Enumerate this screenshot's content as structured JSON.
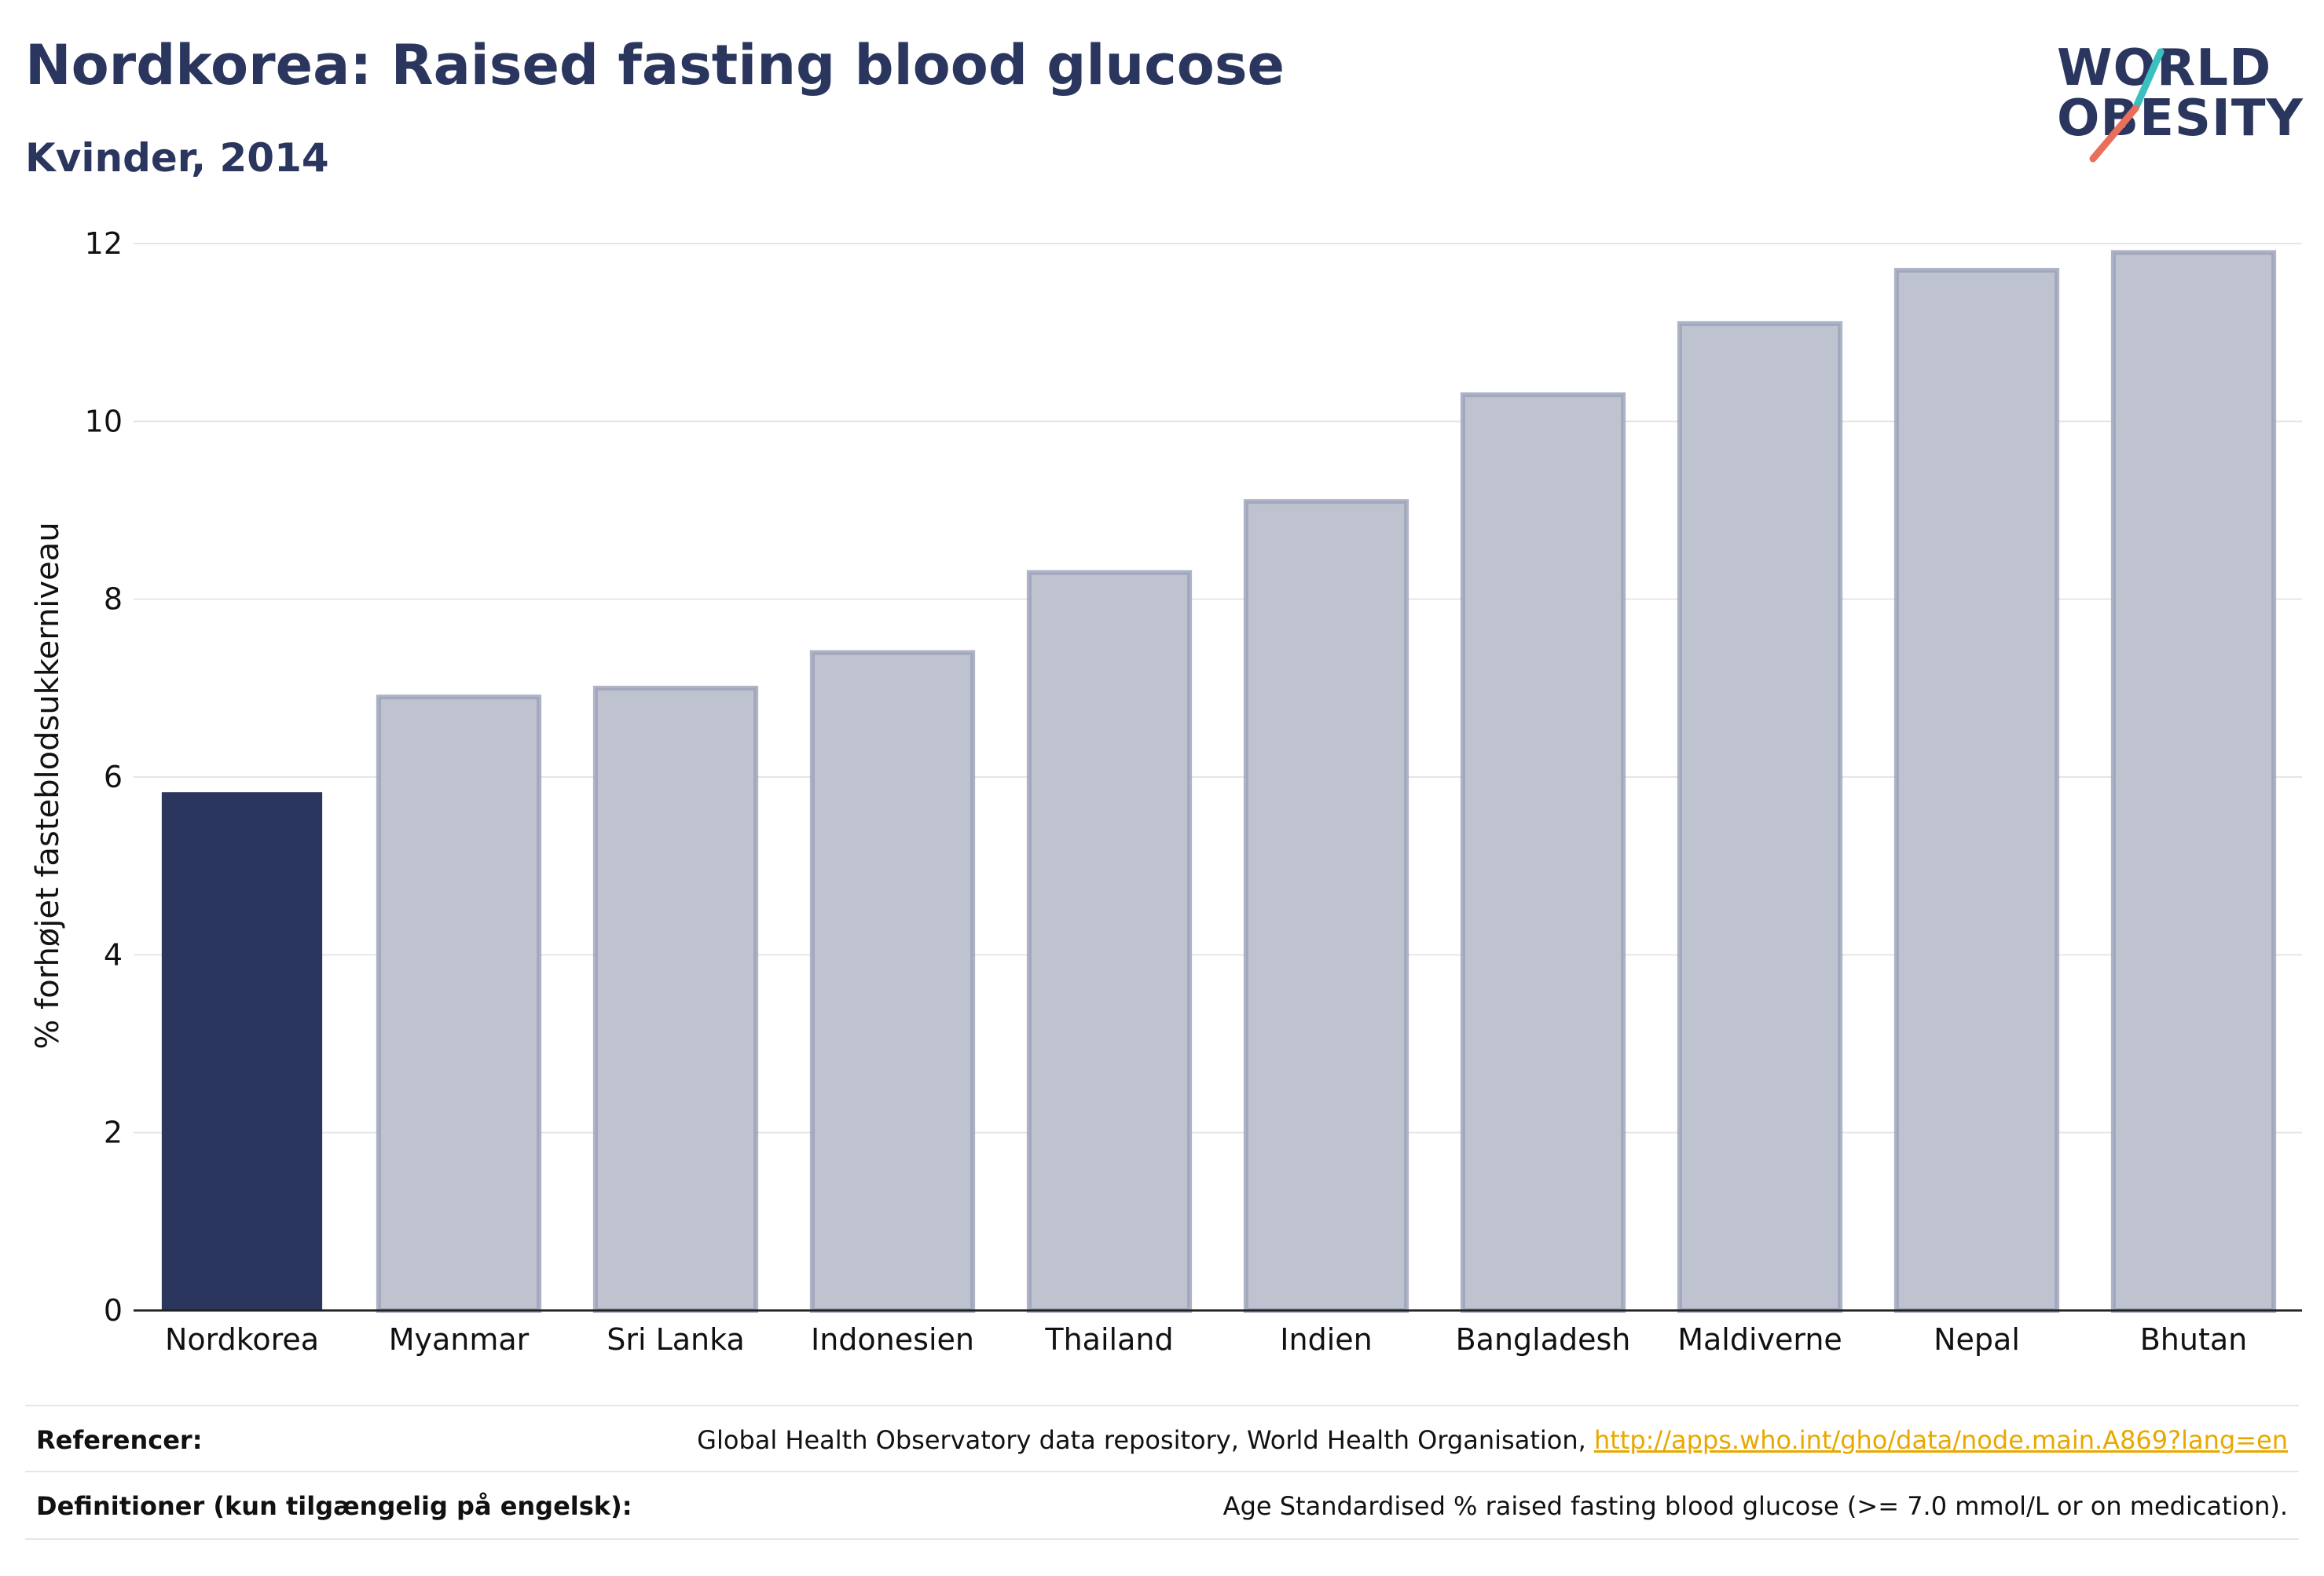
{
  "header": {
    "title": "Nordkorea: Raised fasting blood glucose",
    "subtitle": "Kvinder, 2014"
  },
  "logo": {
    "line1": "WORLD",
    "line2": "OBESITY",
    "colors": {
      "text": "#2b365e",
      "slash_top": "#3cbfbf",
      "slash_bottom": "#e8705a"
    }
  },
  "chart_data": {
    "type": "bar",
    "title": "Nordkorea: Raised fasting blood glucose",
    "subtitle": "Kvinder, 2014",
    "xlabel": "",
    "ylabel": "% forhøjet fasteblodsukkerniveau",
    "categories": [
      "Nordkorea",
      "Myanmar",
      "Sri Lanka",
      "Indonesien",
      "Thailand",
      "Indien",
      "Bangladesh",
      "Maldiverne",
      "Nepal",
      "Bhutan"
    ],
    "values": [
      5.83,
      6.9,
      7.0,
      7.4,
      8.3,
      9.1,
      10.3,
      11.1,
      11.7,
      11.9
    ],
    "highlight_index": 0,
    "highlight_color": "#2b365e",
    "bar_color": "#bfc2cf",
    "bar_border_color": "#9aa0b8",
    "ylim": [
      0,
      12
    ],
    "yticks": [
      0,
      2,
      4,
      6,
      8,
      10,
      12
    ],
    "grid": true,
    "legend": "none"
  },
  "footer": {
    "references_label": "Referencer:",
    "references_text": "Global Health Observatory data repository, World Health Organisation,",
    "references_link": "http://apps.who.int/gho/data/node.main.A869?lang=en",
    "definitions_label": "Definitioner (kun tilgængelig på engelsk):",
    "definitions_text": "Age Standardised % raised fasting blood glucose (>= 7.0 mmol/L or on medication)."
  }
}
